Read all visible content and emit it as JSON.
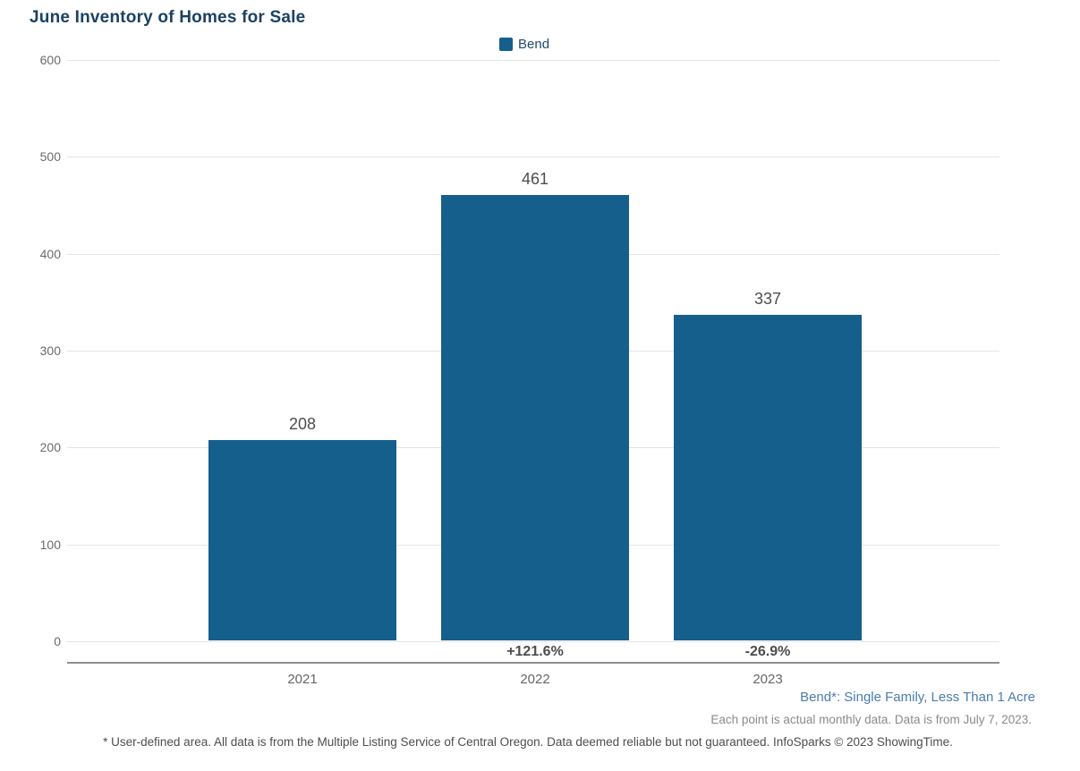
{
  "header": {
    "title": "June Inventory of Homes for Sale",
    "title_color": "#1b4163"
  },
  "legend": {
    "label": "Bend",
    "swatch_color": "#155f8d"
  },
  "chart_data": {
    "type": "bar",
    "title": "June Inventory of Homes for Sale",
    "categories": [
      "2021",
      "2022",
      "2023"
    ],
    "series": [
      {
        "name": "Bend",
        "values": [
          208,
          461,
          337
        ]
      }
    ],
    "value_labels": [
      "208",
      "461",
      "337"
    ],
    "pct_change_labels": [
      "",
      "+121.6%",
      "-26.9%"
    ],
    "y_ticks": [
      0,
      100,
      200,
      300,
      400,
      500,
      600
    ],
    "y_tick_labels": [
      "0",
      "100",
      "200",
      "300",
      "400",
      "500",
      "600"
    ],
    "ylim": [
      0,
      600
    ],
    "xlabel": "",
    "ylabel": "",
    "grid": true,
    "legend_position": "top-center",
    "bar_color": "#155f8d",
    "gridline_color": "#e4e4e4",
    "axis_line_color": "#8f8f8f"
  },
  "footnotes": {
    "series_definition": "Bend*: Single Family, Less Than 1 Acre",
    "data_note": "Each point is actual monthly data. Data is from July 7, 2023.",
    "disclaimer": "* User-defined area. All data is from the Multiple Listing Service of Central Oregon. Data deemed reliable but not guaranteed. InfoSparks © 2023 ShowingTime."
  }
}
